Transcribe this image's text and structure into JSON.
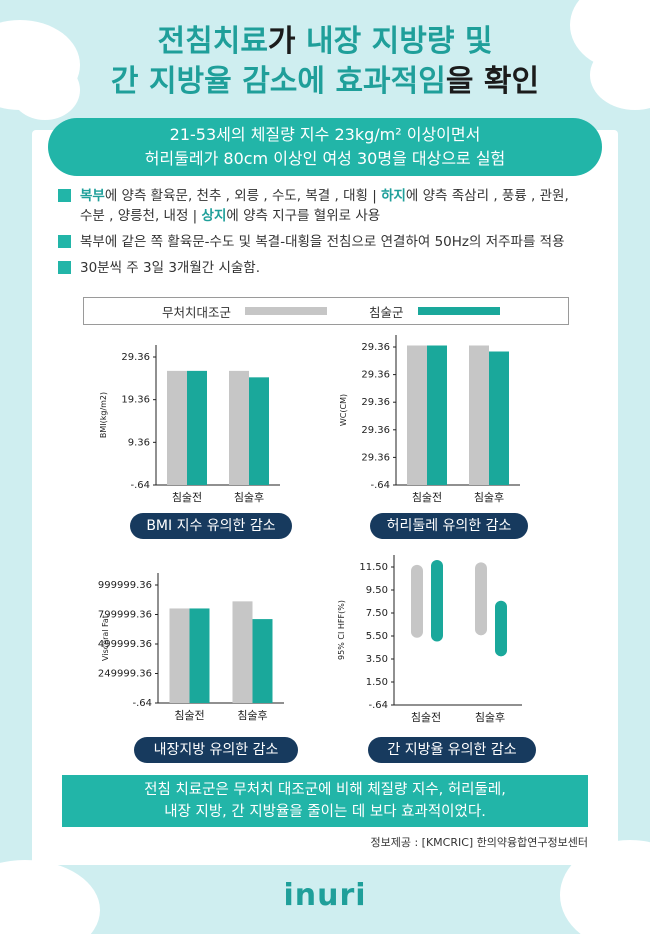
{
  "title": {
    "line1_hl_a": "전침치료",
    "line1_dk": "가 ",
    "line1_hl_b": "내장 지방량 및",
    "line2_hl": "간 지방율 감소에 효과적임",
    "line2_dk": "을 확인"
  },
  "banner": {
    "line1": "21-53세의 체질량 지수 23kg/m² 이상이면서",
    "line2": "허리둘레가 80cm 이상인 여성 30명을 대상으로 실험"
  },
  "bullets": {
    "b1_hl1": "복부",
    "b1_t1": "에 양측 활육문, 천추 , 외릉 , 수도, 복결 , 대횡  |  ",
    "b1_hl2": "하지",
    "b1_t2": "에 양측 족삼리 , 풍륭 , 관원,",
    "b1_t3": "수분 , 양릉천, 내정  |  ",
    "b1_hl3": "상지",
    "b1_t4": "에 양측 지구를 혈위로 사용",
    "b2": "복부에 같은 쪽 활육문-수도 및 복결-대횡을 전침으로 연결하여 50Hz의 저주파를 적용",
    "b3": "30분씩 주 3일 3개월간 시술함."
  },
  "legend": {
    "control": "무처치대조군",
    "treatment": "침술군"
  },
  "colors": {
    "control": "#c6c6c6",
    "treatment": "#1aa89b",
    "teal": "#22b5a8",
    "navy": "#173a5e"
  },
  "chart_data": [
    {
      "type": "bar",
      "ylabel": "BMI(kg/m2)",
      "yticks": [
        "29.36",
        "19.36",
        "9.36",
        "-.64"
      ],
      "ylim": [
        -0.64,
        34
      ],
      "categories": [
        "침술전",
        "침술후"
      ],
      "series": [
        {
          "name": "무처치대조군",
          "values": [
            27.6,
            27.6
          ]
        },
        {
          "name": "침술군",
          "values": [
            27.6,
            26.0
          ]
        }
      ],
      "caption": "BMI 지수 유의한 감소"
    },
    {
      "type": "bar",
      "ylabel": "WC(CM)",
      "yticks": [
        "29.36",
        "29.36",
        "29.36",
        "29.36",
        "29.36",
        "-.64"
      ],
      "ylim": [
        0,
        100
      ],
      "categories": [
        "침술전",
        "침술후"
      ],
      "series": [
        {
          "name": "무처치대조군",
          "values": [
            93,
            93
          ]
        },
        {
          "name": "침술군",
          "values": [
            93,
            89
          ]
        }
      ],
      "caption": "허리둘레 유의한 감소"
    },
    {
      "type": "bar",
      "ylabel": "Visceral Fat",
      "yticks": [
        "999999.36",
        "799999.36",
        "499999.36",
        "249999.36",
        "-.64"
      ],
      "ylim": [
        -0.64,
        1100000
      ],
      "categories": [
        "침술전",
        "침술후"
      ],
      "series": [
        {
          "name": "무처치대조군",
          "values": [
            800000,
            860000
          ]
        },
        {
          "name": "침술군",
          "values": [
            800000,
            710000
          ]
        }
      ],
      "caption": "내장지방 유의한 감소"
    },
    {
      "type": "range",
      "ylabel": "95% CI HFF(%)",
      "yticks": [
        "11.50",
        "9.50",
        "7.50",
        "5.50",
        "3.50",
        "1.50",
        "-.64"
      ],
      "ylim": [
        -0.64,
        11.5
      ],
      "categories": [
        "침술전",
        "침술후"
      ],
      "series": [
        {
          "name": "무처치대조군",
          "ranges": [
            [
              4.8,
              10.7
            ],
            [
              5.0,
              10.9
            ]
          ]
        },
        {
          "name": "침술군",
          "ranges": [
            [
              4.5,
              11.1
            ],
            [
              3.3,
              7.8
            ]
          ]
        }
      ],
      "caption": "간 지방율 유의한 감소"
    }
  ],
  "footer": {
    "line1": "전침 치료군은 무처치 대조군에 비해 체질량 지수, 허리둘레,",
    "line2": "내장 지방, 간 지방율을 줄이는 데 보다 효과적이었다."
  },
  "source": "정보제공 : [KMCRIC] 한의약융합연구정보센터",
  "logo": "inuri"
}
